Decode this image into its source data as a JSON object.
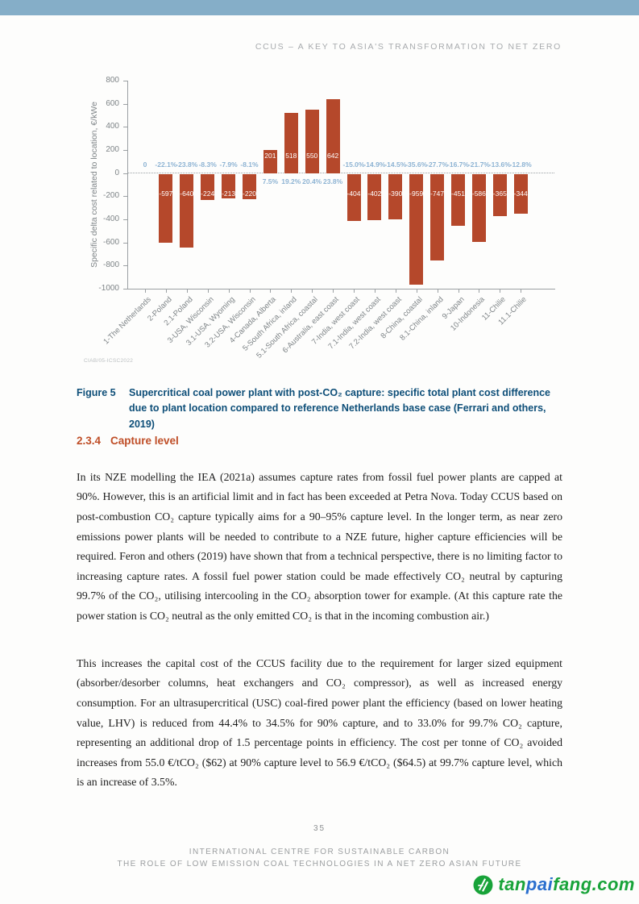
{
  "page": {
    "header": "CCUS – A KEY TO ASIA'S TRANSFORMATION TO NET ZERO",
    "page_number": "35",
    "footer_line1": "INTERNATIONAL CENTRE FOR SUSTAINABLE CARBON",
    "footer_line2": "THE ROLE OF LOW EMISSION COAL TECHNOLOGIES IN A NET ZERO ASIAN FUTURE",
    "top_band_color": "#85aec8"
  },
  "figure": {
    "label": "Figure 5",
    "caption": "Supercritical coal power plant with post-CO₂ capture: specific total plant cost difference due to plant location compared to reference Netherlands base case (Ferrari and others, 2019)",
    "source_note": "CIAB/05-ICSC2022"
  },
  "section": {
    "number": "2.3.4",
    "title": "Capture level"
  },
  "paragraphs": {
    "p1": "In its NZE modelling the IEA (2021a) assumes capture rates from fossil fuel power plants are capped at 90%. However, this is an artificial limit and in fact has been exceeded at Petra Nova. Today CCUS based on post-combustion CO₂ capture typically aims for a 90–95% capture level. In the longer term, as near zero emissions power plants will be needed to contribute to a NZE future, higher capture efficiencies will be required. Feron and others (2019) have shown that from a technical perspective, there is no limiting factor to increasing capture rates. A fossil fuel power station could be made effectively CO₂ neutral by capturing 99.7% of the CO₂, utilising intercooling in the CO₂ absorption tower for example. (At this capture rate the power station is CO₂ neutral as the only emitted CO₂ is that in the incoming combustion air.)",
    "p2": "This increases the capital cost of the CCUS facility due to the requirement for larger sized equipment (absorber/desorber columns, heat exchangers and CO₂ compressor), as well as increased energy consumption. For an ultrasupercritical (USC) coal-fired power plant the efficiency (based on lower heating value, LHV) is reduced from 44.4% to 34.5% for 90% capture, and to 33.0% for 99.7% CO₂ capture, representing an additional drop of 1.5 percentage points in efficiency. The cost per tonne of CO₂ avoided increases from 55.0 €/tCO₂ ($62) at 90% capture level to 56.9 €/tCO₂ ($64.5) at 99.7% capture level, which is an increase of 3.5%."
  },
  "logo": {
    "seg1": {
      "text": "tan",
      "color": "#18a339"
    },
    "seg2": {
      "text": "pai",
      "color": "#2a6fce"
    },
    "seg3": {
      "text": "fang.com",
      "color": "#18a339"
    },
    "icon": "leaf-circle"
  },
  "chart_data": {
    "type": "bar",
    "title": "",
    "xlabel": "",
    "ylabel": "Specific delta cost related to location, €/kWe",
    "ylim": [
      -1000,
      800
    ],
    "ytick_step": 200,
    "grid": false,
    "zero_line_style": "dotted",
    "bar_color": "#b5482b",
    "pct_label_color": "#8db3d3",
    "value_label_color": "#ffffff",
    "categories": [
      "1-The Netherlands",
      "2-Poland",
      "2.1-Poland",
      "3-USA, Wisconsin",
      "3.1-USA, Wyoming",
      "3.2-USA, Wisconsin",
      "4-Canada, Alberta",
      "5-South Africa, inland",
      "5.1-South Africa, coastal",
      "6-Australia, east coast",
      "7-India, west coast",
      "7.1-India, west coast",
      "7.2-India, west coast",
      "8-China, coastal",
      "8.1-China, inland",
      "9-Japan",
      "10-Indonesia",
      "11-Chilie",
      "11.1-Chilie"
    ],
    "values": [
      0,
      -597,
      -640,
      -224,
      -213,
      -220,
      201,
      518,
      550,
      642,
      -404,
      -402,
      -390,
      -959,
      -747,
      -451,
      -586,
      -365,
      -344
    ],
    "pct_labels": [
      "0",
      "-22.1%",
      "-23.8%",
      "-8.3%",
      "-7.9%",
      "-8.1%",
      "7.5%",
      "19.2%",
      "20.4%",
      "23.8%",
      "-15.0%",
      "-14.9%",
      "-14.5%",
      "-35.6%",
      "-27.7%",
      "-16.7%",
      "-21.7%",
      "-13.6%",
      "-12.8%"
    ]
  }
}
